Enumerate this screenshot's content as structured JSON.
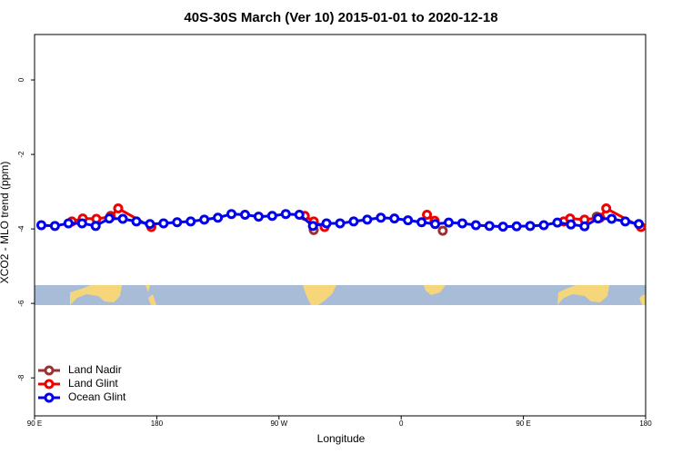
{
  "chart_data": {
    "type": "line",
    "title": "40S-30S March (Ver 10)   2015-01-01 to 2020-12-18",
    "x_label": "Longitude",
    "y_label": "XCO2 - MLO trend (ppm)",
    "xlim": [
      90,
      540
    ],
    "xticks": [
      {
        "value": 90,
        "label": "90 E"
      },
      {
        "value": 180,
        "label": "180"
      },
      {
        "value": 270,
        "label": "90 W"
      },
      {
        "value": 360,
        "label": "0"
      },
      {
        "value": 450,
        "label": "90 E"
      },
      {
        "value": 540,
        "label": "180"
      }
    ],
    "ylim": [
      -9.02,
      1.22
    ],
    "yticks": [
      0,
      -2,
      -4,
      -6,
      -8
    ],
    "legend": "bottom-left",
    "series": [
      {
        "name": "Land Nadir",
        "color": "#993333",
        "x": [
          146,
          295.6,
          390.6,
          504
        ],
        "values": [
          -3.65,
          -4.03,
          -4.05,
          -3.67
        ]
      },
      {
        "name": "Land Glint",
        "color": "#ee0000",
        "x": [
          117.5,
          125.5,
          135.5,
          146,
          151.6,
          176,
          289,
          295.6,
          303.6,
          379,
          384.6,
          479.7,
          484.4,
          495,
          506.5,
          511,
          536.6
        ],
        "values": [
          -3.8,
          -3.72,
          -3.73,
          -3.68,
          -3.45,
          -3.95,
          -3.65,
          -3.8,
          -3.95,
          -3.62,
          -3.78,
          -3.8,
          -3.72,
          -3.75,
          -3.7,
          -3.45,
          -3.95
        ]
      },
      {
        "name": "Ocean Glint",
        "color": "#0000ee",
        "x": [
          95,
          105,
          115,
          125,
          135,
          145,
          155,
          165,
          175,
          185,
          195,
          205,
          215,
          225,
          235,
          245,
          255,
          265,
          275,
          285,
          295,
          305,
          315,
          325,
          335,
          345,
          355,
          365,
          375,
          385,
          395,
          405,
          415,
          425,
          435,
          445,
          455,
          465,
          475,
          485,
          495,
          505,
          515,
          525,
          535
        ],
        "values": [
          -3.9,
          -3.92,
          -3.85,
          -3.85,
          -3.92,
          -3.72,
          -3.73,
          -3.8,
          -3.87,
          -3.85,
          -3.82,
          -3.8,
          -3.75,
          -3.7,
          -3.6,
          -3.62,
          -3.67,
          -3.65,
          -3.6,
          -3.62,
          -3.92,
          -3.85,
          -3.85,
          -3.8,
          -3.75,
          -3.7,
          -3.72,
          -3.77,
          -3.82,
          -3.87,
          -3.83,
          -3.85,
          -3.9,
          -3.92,
          -3.94,
          -3.93,
          -3.92,
          -3.9,
          -3.83,
          -3.88,
          -3.93,
          -3.72,
          -3.73,
          -3.8,
          -3.87
        ]
      }
    ]
  }
}
